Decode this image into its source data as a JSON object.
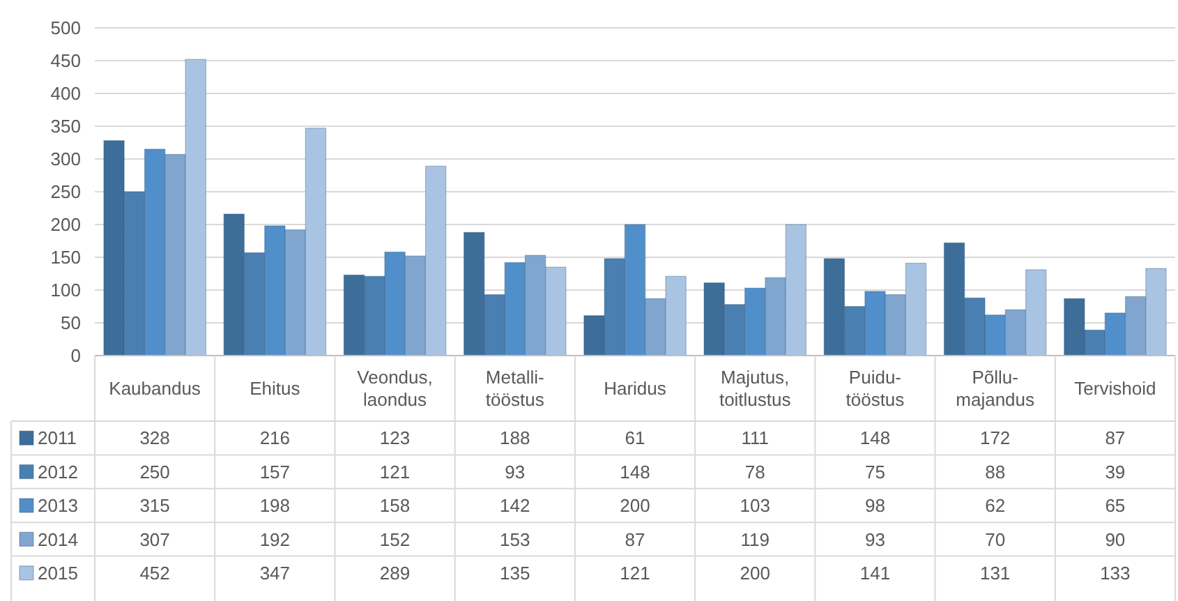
{
  "chart_data": {
    "type": "bar",
    "categories": [
      "Kaubandus",
      "Ehitus",
      "Veondus, laondus",
      "Metalli-tööstus",
      "Haridus",
      "Majutus, toitlustus",
      "Puidu-tööstus",
      "Põllu-majandus",
      "Tervishoid"
    ],
    "series": [
      {
        "name": "2011",
        "color": "#3d6d99",
        "values": [
          328,
          216,
          123,
          188,
          61,
          111,
          148,
          172,
          87
        ]
      },
      {
        "name": "2012",
        "color": "#4a7fb2",
        "values": [
          250,
          157,
          121,
          93,
          148,
          78,
          75,
          88,
          39
        ]
      },
      {
        "name": "2013",
        "color": "#518fcb",
        "values": [
          315,
          198,
          158,
          142,
          200,
          103,
          98,
          62,
          65
        ]
      },
      {
        "name": "2014",
        "color": "#80a6cf",
        "values": [
          307,
          192,
          152,
          153,
          87,
          119,
          93,
          70,
          90
        ]
      },
      {
        "name": "2015",
        "color": "#a9c4e2",
        "values": [
          452,
          347,
          289,
          135,
          121,
          200,
          141,
          131,
          133
        ]
      }
    ],
    "ylim": [
      0,
      500
    ],
    "yticks": [
      0,
      50,
      100,
      150,
      200,
      250,
      300,
      350,
      400,
      450,
      500
    ],
    "grid": "y",
    "legend": "bottom left",
    "data_labels": true
  }
}
